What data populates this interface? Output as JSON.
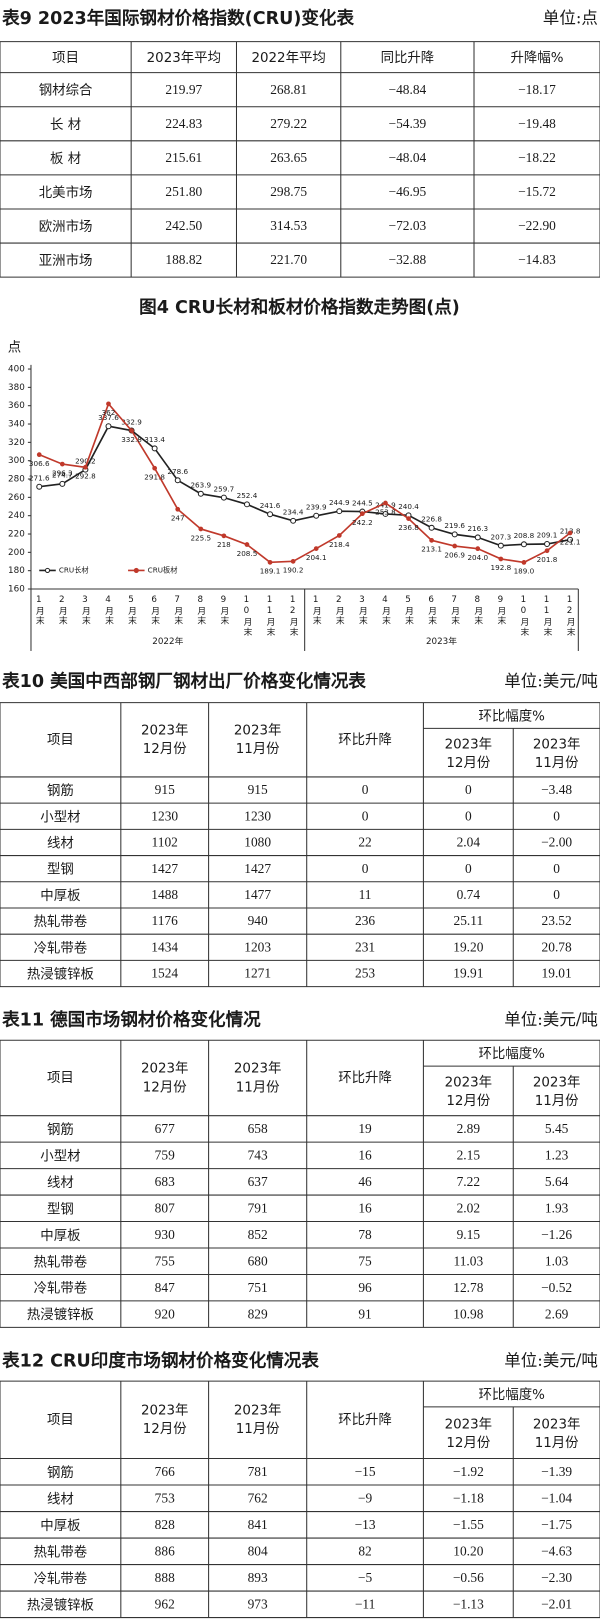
{
  "table9": {
    "title": "表9 2023年国际钢材价格指数(CRU)变化表",
    "unit": "单位:点",
    "header": [
      "项目",
      "2023年平均",
      "2022年平均",
      "同比升降",
      "升降幅%"
    ],
    "rows": [
      [
        "钢材综合",
        "219.97",
        "268.81",
        "−48.84",
        "−18.17"
      ],
      [
        "长 材",
        "224.83",
        "279.22",
        "−54.39",
        "−19.48"
      ],
      [
        "板 材",
        "215.61",
        "263.65",
        "−48.04",
        "−18.22"
      ],
      [
        "北美市场",
        "251.80",
        "298.75",
        "−46.95",
        "−15.72"
      ],
      [
        "欧洲市场",
        "242.50",
        "314.53",
        "−72.03",
        "−22.90"
      ],
      [
        "亚洲市场",
        "188.82",
        "221.70",
        "−32.88",
        "−14.83"
      ]
    ]
  },
  "chart": {
    "type": "line",
    "title": "图4 CRU长材和板材价格指数走势图(点)",
    "y_label": "点",
    "categories": [
      "1月末",
      "2月末",
      "3月末",
      "4月末",
      "5月末",
      "6月末",
      "7月末",
      "8月末",
      "9月末",
      "10月末",
      "11月末",
      "12月末",
      "1月末",
      "2月末",
      "3月末",
      "4月末",
      "5月末",
      "6月末",
      "7月末",
      "8月末",
      "9月末",
      "10月末",
      "11月末",
      "12月末"
    ],
    "year_groups": [
      "2022年",
      "2023年"
    ],
    "ylim": [
      160,
      400
    ],
    "yticks": [
      160,
      180,
      200,
      220,
      240,
      260,
      280,
      300,
      320,
      340,
      360,
      380,
      400
    ],
    "legend": "bottom-left",
    "series": [
      {
        "name": "CRU长材",
        "color": "#222222",
        "values": [
          271.6,
          274.7,
          290.2,
          337.6,
          332.9,
          313.4,
          278.6,
          263.9,
          259.7,
          252.4,
          241.6,
          234.4,
          239.9,
          244.9,
          244.5,
          241.9,
          240.4,
          226.8,
          219.6,
          216.3,
          207.3,
          208.8,
          209.1,
          213.8
        ],
        "value_labels": [
          "271.6",
          "274.7",
          "290.2",
          "337.6",
          "332.9",
          "313.4",
          "278.6",
          "263.9",
          "259.7",
          "252.4",
          "241.6",
          "234.4",
          "239.9",
          "244.9",
          "244.5",
          "241.9",
          "240.4",
          "226.8",
          "219.6",
          "216.3",
          "207.3",
          "208.8",
          "209.1",
          "213.8"
        ]
      },
      {
        "name": "CRU板材",
        "color": "#c0392b",
        "values": [
          306.6,
          296.3,
          292.8,
          362,
          332.8,
          291.8,
          247,
          225.5,
          218,
          208.5,
          189.1,
          190.2,
          204.1,
          218.4,
          242.2,
          253.8,
          236.8,
          213.1,
          206.9,
          204.0,
          192.8,
          189.0,
          201.8,
          221.1
        ],
        "value_labels": [
          "306.6",
          "296.3",
          "292.8",
          "362",
          "332.8",
          "291.8",
          "247",
          "225.5",
          "218",
          "208.5",
          "189.1",
          "190.2",
          "204.1",
          "218.4",
          "242.2",
          "253.8",
          "236.8",
          "213.1",
          "206.9",
          "204.0",
          "192.8",
          "189.0",
          "201.8",
          "221.1"
        ]
      }
    ]
  },
  "table10": {
    "title": "表10 美国中西部钢厂钢材出厂价格变化情况表",
    "unit": "单位:美元/吨",
    "header": {
      "item": "项目",
      "cols": [
        [
          "2023年",
          "12月份"
        ],
        [
          "2023年",
          "11月份"
        ]
      ],
      "change": "环比升降",
      "range": "环比幅度%",
      "range_cols": [
        [
          "2023年",
          "12月份"
        ],
        [
          "2023年",
          "11月份"
        ]
      ]
    },
    "rows": [
      [
        "钢筋",
        "915",
        "915",
        "0",
        "0",
        "−3.48"
      ],
      [
        "小型材",
        "1230",
        "1230",
        "0",
        "0",
        "0"
      ],
      [
        "线材",
        "1102",
        "1080",
        "22",
        "2.04",
        "−2.00"
      ],
      [
        "型钢",
        "1427",
        "1427",
        "0",
        "0",
        "0"
      ],
      [
        "中厚板",
        "1488",
        "1477",
        "11",
        "0.74",
        "0"
      ],
      [
        "热轧带卷",
        "1176",
        "940",
        "236",
        "25.11",
        "23.52"
      ],
      [
        "冷轧带卷",
        "1434",
        "1203",
        "231",
        "19.20",
        "20.78"
      ],
      [
        "热浸镀锌板",
        "1524",
        "1271",
        "253",
        "19.91",
        "19.01"
      ]
    ]
  },
  "table11": {
    "title": "表11 德国市场钢材价格变化情况",
    "unit": "单位:美元/吨",
    "header": {
      "item": "项目",
      "cols": [
        [
          "2023年",
          "12月份"
        ],
        [
          "2023年",
          "11月份"
        ]
      ],
      "change": "环比升降",
      "range": "环比幅度%",
      "range_cols": [
        [
          "2023年",
          "12月份"
        ],
        [
          "2023年",
          "11月份"
        ]
      ]
    },
    "rows": [
      [
        "钢筋",
        "677",
        "658",
        "19",
        "2.89",
        "5.45"
      ],
      [
        "小型材",
        "759",
        "743",
        "16",
        "2.15",
        "1.23"
      ],
      [
        "线材",
        "683",
        "637",
        "46",
        "7.22",
        "5.64"
      ],
      [
        "型钢",
        "807",
        "791",
        "16",
        "2.02",
        "1.93"
      ],
      [
        "中厚板",
        "930",
        "852",
        "78",
        "9.15",
        "−1.26"
      ],
      [
        "热轧带卷",
        "755",
        "680",
        "75",
        "11.03",
        "1.03"
      ],
      [
        "冷轧带卷",
        "847",
        "751",
        "96",
        "12.78",
        "−0.52"
      ],
      [
        "热浸镀锌板",
        "920",
        "829",
        "91",
        "10.98",
        "2.69"
      ]
    ]
  },
  "table12": {
    "title": "表12 CRU印度市场钢材价格变化情况表",
    "unit": "单位:美元/吨",
    "header": {
      "item": "项目",
      "cols": [
        [
          "2023年",
          "12月份"
        ],
        [
          "2023年",
          "11月份"
        ]
      ],
      "change": "环比升降",
      "range": "环比幅度%",
      "range_cols": [
        [
          "2023年",
          "12月份"
        ],
        [
          "2023年",
          "11月份"
        ]
      ]
    },
    "rows": [
      [
        "钢筋",
        "766",
        "781",
        "−15",
        "−1.92",
        "−1.39"
      ],
      [
        "线材",
        "753",
        "762",
        "−9",
        "−1.18",
        "−1.04"
      ],
      [
        "中厚板",
        "828",
        "841",
        "−13",
        "−1.55",
        "−1.75"
      ],
      [
        "热轧带卷",
        "886",
        "804",
        "82",
        "10.20",
        "−4.63"
      ],
      [
        "冷轧带卷",
        "888",
        "893",
        "−5",
        "−0.56",
        "−2.30"
      ],
      [
        "热浸镀锌板",
        "962",
        "973",
        "−11",
        "−1.13",
        "−2.01"
      ]
    ]
  }
}
